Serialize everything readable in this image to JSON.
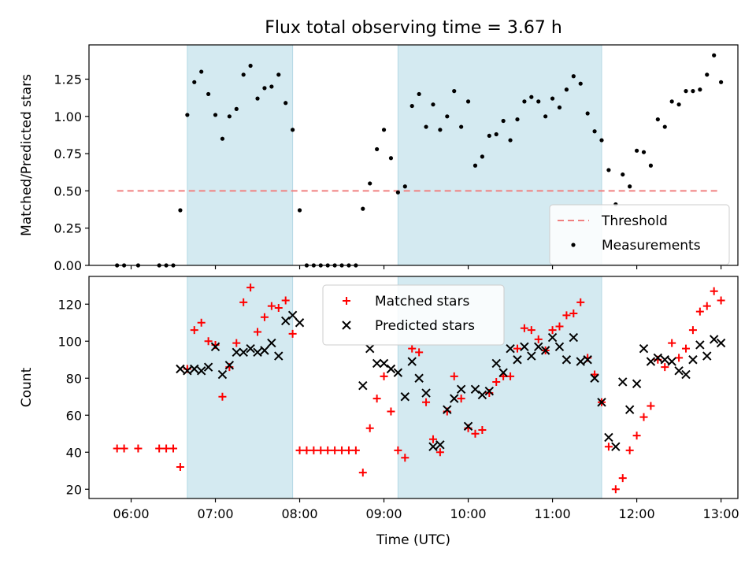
{
  "figure": {
    "title": "Flux total observing time = 3.67 h",
    "xlabel": "Time (UTC)"
  },
  "chart_data": [
    {
      "type": "scatter",
      "panel": "top",
      "ylabel": "Matched/Predicted stars",
      "xlim": [
        "05:30",
        "13:12"
      ],
      "ylim": [
        0,
        1.48
      ],
      "y_ticks": [
        "0.00",
        "0.25",
        "0.50",
        "0.75",
        "1.00",
        "1.25"
      ],
      "shaded_intervals": [
        [
          "06:40",
          "07:55"
        ],
        [
          "09:10",
          "11:35"
        ]
      ],
      "shade_color": "#d4eaf1",
      "legend_position": "lower right",
      "threshold": {
        "name": "Threshold",
        "value": 0.5,
        "x_range": [
          "05:50",
          "13:00"
        ],
        "color": "#f08080",
        "style": "dashed"
      },
      "series": [
        {
          "name": "Measurements",
          "marker": "dot",
          "color": "#000000",
          "points": [
            [
              "05:50",
              0.0
            ],
            [
              "05:55",
              0.0
            ],
            [
              "06:05",
              0.0
            ],
            [
              "06:20",
              0.0
            ],
            [
              "06:25",
              0.0
            ],
            [
              "06:30",
              0.0
            ],
            [
              "06:35",
              0.37
            ],
            [
              "06:40",
              1.01
            ],
            [
              "06:45",
              1.23
            ],
            [
              "06:50",
              1.3
            ],
            [
              "06:55",
              1.15
            ],
            [
              "07:00",
              1.01
            ],
            [
              "07:05",
              0.85
            ],
            [
              "07:10",
              1.0
            ],
            [
              "07:15",
              1.05
            ],
            [
              "07:20",
              1.28
            ],
            [
              "07:25",
              1.34
            ],
            [
              "07:30",
              1.12
            ],
            [
              "07:35",
              1.19
            ],
            [
              "07:40",
              1.2
            ],
            [
              "07:45",
              1.28
            ],
            [
              "07:50",
              1.09
            ],
            [
              "07:55",
              0.91
            ],
            [
              "08:00",
              0.37
            ],
            [
              "08:05",
              0.0
            ],
            [
              "08:10",
              0.0
            ],
            [
              "08:15",
              0.0
            ],
            [
              "08:20",
              0.0
            ],
            [
              "08:25",
              0.0
            ],
            [
              "08:30",
              0.0
            ],
            [
              "08:35",
              0.0
            ],
            [
              "08:40",
              0.0
            ],
            [
              "08:45",
              0.38
            ],
            [
              "08:50",
              0.55
            ],
            [
              "08:55",
              0.78
            ],
            [
              "09:00",
              0.91
            ],
            [
              "09:05",
              0.72
            ],
            [
              "09:10",
              0.49
            ],
            [
              "09:15",
              0.53
            ],
            [
              "09:20",
              1.07
            ],
            [
              "09:25",
              1.15
            ],
            [
              "09:30",
              0.93
            ],
            [
              "09:35",
              1.08
            ],
            [
              "09:40",
              0.91
            ],
            [
              "09:45",
              1.0
            ],
            [
              "09:50",
              1.17
            ],
            [
              "09:55",
              0.93
            ],
            [
              "10:00",
              1.1
            ],
            [
              "10:05",
              0.67
            ],
            [
              "10:10",
              0.73
            ],
            [
              "10:15",
              0.87
            ],
            [
              "10:20",
              0.88
            ],
            [
              "10:25",
              0.97
            ],
            [
              "10:30",
              0.84
            ],
            [
              "10:35",
              0.98
            ],
            [
              "10:40",
              1.1
            ],
            [
              "10:45",
              1.13
            ],
            [
              "10:50",
              1.1
            ],
            [
              "10:55",
              1.0
            ],
            [
              "11:00",
              1.12
            ],
            [
              "11:05",
              1.06
            ],
            [
              "11:10",
              1.18
            ],
            [
              "11:15",
              1.27
            ],
            [
              "11:20",
              1.22
            ],
            [
              "11:25",
              1.02
            ],
            [
              "11:30",
              0.9
            ],
            [
              "11:35",
              0.84
            ],
            [
              "11:40",
              0.64
            ],
            [
              "11:45",
              0.41
            ],
            [
              "11:50",
              0.61
            ],
            [
              "11:55",
              0.53
            ],
            [
              "12:00",
              0.77
            ],
            [
              "12:05",
              0.76
            ],
            [
              "12:10",
              0.67
            ],
            [
              "12:15",
              0.98
            ],
            [
              "12:20",
              0.93
            ],
            [
              "12:25",
              1.1
            ],
            [
              "12:30",
              1.08
            ],
            [
              "12:35",
              1.17
            ],
            [
              "12:40",
              1.17
            ],
            [
              "12:45",
              1.18
            ],
            [
              "12:50",
              1.28
            ],
            [
              "12:55",
              1.41
            ],
            [
              "13:00",
              1.23
            ]
          ]
        }
      ]
    },
    {
      "type": "scatter",
      "panel": "bottom",
      "ylabel": "Count",
      "xlim": [
        "05:30",
        "13:12"
      ],
      "ylim": [
        15,
        135
      ],
      "y_ticks": [
        "20",
        "40",
        "60",
        "80",
        "100",
        "120"
      ],
      "x_ticks": [
        "06:00",
        "07:00",
        "08:00",
        "09:00",
        "10:00",
        "11:00",
        "12:00",
        "13:00"
      ],
      "shaded_intervals": [
        [
          "06:40",
          "07:55"
        ],
        [
          "09:10",
          "11:35"
        ]
      ],
      "shade_color": "#d4eaf1",
      "legend_position": "upper center",
      "series": [
        {
          "name": "Matched stars",
          "marker": "plus",
          "color": "#ff0000",
          "points": [
            [
              "05:50",
              42
            ],
            [
              "05:55",
              42
            ],
            [
              "06:05",
              42
            ],
            [
              "06:20",
              42
            ],
            [
              "06:25",
              42
            ],
            [
              "06:30",
              42
            ],
            [
              "06:35",
              32
            ],
            [
              "06:40",
              85
            ],
            [
              "06:45",
              106
            ],
            [
              "06:50",
              110
            ],
            [
              "06:55",
              100
            ],
            [
              "07:00",
              98
            ],
            [
              "07:05",
              70
            ],
            [
              "07:10",
              86
            ],
            [
              "07:15",
              99
            ],
            [
              "07:20",
              121
            ],
            [
              "07:25",
              129
            ],
            [
              "07:30",
              105
            ],
            [
              "07:35",
              113
            ],
            [
              "07:40",
              119
            ],
            [
              "07:45",
              118
            ],
            [
              "07:50",
              122
            ],
            [
              "07:55",
              104
            ],
            [
              "08:00",
              41
            ],
            [
              "08:05",
              41
            ],
            [
              "08:10",
              41
            ],
            [
              "08:15",
              41
            ],
            [
              "08:20",
              41
            ],
            [
              "08:25",
              41
            ],
            [
              "08:30",
              41
            ],
            [
              "08:35",
              41
            ],
            [
              "08:40",
              41
            ],
            [
              "08:45",
              29
            ],
            [
              "08:50",
              53
            ],
            [
              "08:55",
              69
            ],
            [
              "09:00",
              81
            ],
            [
              "09:05",
              62
            ],
            [
              "09:10",
              41
            ],
            [
              "09:15",
              37
            ],
            [
              "09:20",
              96
            ],
            [
              "09:25",
              94
            ],
            [
              "09:30",
              67
            ],
            [
              "09:35",
              47
            ],
            [
              "09:40",
              40
            ],
            [
              "09:45",
              62
            ],
            [
              "09:50",
              81
            ],
            [
              "09:55",
              69
            ],
            [
              "10:00",
              53
            ],
            [
              "10:05",
              50
            ],
            [
              "10:10",
              52
            ],
            [
              "10:15",
              72
            ],
            [
              "10:20",
              78
            ],
            [
              "10:25",
              81
            ],
            [
              "10:30",
              81
            ],
            [
              "10:35",
              96
            ],
            [
              "10:40",
              107
            ],
            [
              "10:45",
              106
            ],
            [
              "10:50",
              101
            ],
            [
              "10:55",
              95
            ],
            [
              "11:00",
              106
            ],
            [
              "11:05",
              108
            ],
            [
              "11:10",
              114
            ],
            [
              "11:15",
              115
            ],
            [
              "11:20",
              121
            ],
            [
              "11:25",
              91
            ],
            [
              "11:30",
              82
            ],
            [
              "11:35",
              67
            ],
            [
              "11:40",
              43
            ],
            [
              "11:45",
              20
            ],
            [
              "11:50",
              26
            ],
            [
              "11:55",
              41
            ],
            [
              "12:00",
              49
            ],
            [
              "12:05",
              59
            ],
            [
              "12:10",
              65
            ],
            [
              "12:15",
              90
            ],
            [
              "12:20",
              86
            ],
            [
              "12:25",
              99
            ],
            [
              "12:30",
              91
            ],
            [
              "12:35",
              96
            ],
            [
              "12:40",
              106
            ],
            [
              "12:45",
              116
            ],
            [
              "12:50",
              119
            ],
            [
              "12:55",
              127
            ],
            [
              "13:00",
              122
            ]
          ]
        },
        {
          "name": "Predicted stars",
          "marker": "x",
          "color": "#000000",
          "points": [
            [
              "06:35",
              85
            ],
            [
              "06:40",
              84
            ],
            [
              "06:45",
              85
            ],
            [
              "06:50",
              84
            ],
            [
              "06:55",
              86
            ],
            [
              "07:00",
              97
            ],
            [
              "07:05",
              82
            ],
            [
              "07:10",
              87
            ],
            [
              "07:15",
              94
            ],
            [
              "07:20",
              94
            ],
            [
              "07:25",
              96
            ],
            [
              "07:30",
              94
            ],
            [
              "07:35",
              95
            ],
            [
              "07:40",
              99
            ],
            [
              "07:45",
              92
            ],
            [
              "07:50",
              111
            ],
            [
              "07:55",
              114
            ],
            [
              "08:00",
              110
            ],
            [
              "08:45",
              76
            ],
            [
              "08:50",
              96
            ],
            [
              "08:55",
              88
            ],
            [
              "09:00",
              88
            ],
            [
              "09:05",
              85
            ],
            [
              "09:10",
              83
            ],
            [
              "09:15",
              70
            ],
            [
              "09:20",
              89
            ],
            [
              "09:25",
              80
            ],
            [
              "09:30",
              72
            ],
            [
              "09:35",
              43
            ],
            [
              "09:40",
              44
            ],
            [
              "09:45",
              63
            ],
            [
              "09:50",
              69
            ],
            [
              "09:55",
              74
            ],
            [
              "10:00",
              54
            ],
            [
              "10:05",
              74
            ],
            [
              "10:10",
              71
            ],
            [
              "10:15",
              73
            ],
            [
              "10:20",
              88
            ],
            [
              "10:25",
              83
            ],
            [
              "10:30",
              96
            ],
            [
              "10:35",
              90
            ],
            [
              "10:40",
              97
            ],
            [
              "10:45",
              92
            ],
            [
              "10:50",
              97
            ],
            [
              "10:55",
              95
            ],
            [
              "11:00",
              102
            ],
            [
              "11:05",
              97
            ],
            [
              "11:10",
              90
            ],
            [
              "11:15",
              102
            ],
            [
              "11:20",
              89
            ],
            [
              "11:25",
              90
            ],
            [
              "11:30",
              80
            ],
            [
              "11:35",
              67
            ],
            [
              "11:40",
              48
            ],
            [
              "11:45",
              43
            ],
            [
              "11:50",
              78
            ],
            [
              "11:55",
              63
            ],
            [
              "12:00",
              77
            ],
            [
              "12:05",
              96
            ],
            [
              "12:10",
              89
            ],
            [
              "12:15",
              91
            ],
            [
              "12:20",
              90
            ],
            [
              "12:25",
              89
            ],
            [
              "12:30",
              84
            ],
            [
              "12:35",
              82
            ],
            [
              "12:40",
              90
            ],
            [
              "12:45",
              98
            ],
            [
              "12:50",
              92
            ],
            [
              "12:55",
              101
            ],
            [
              "13:00",
              99
            ]
          ]
        }
      ]
    }
  ]
}
